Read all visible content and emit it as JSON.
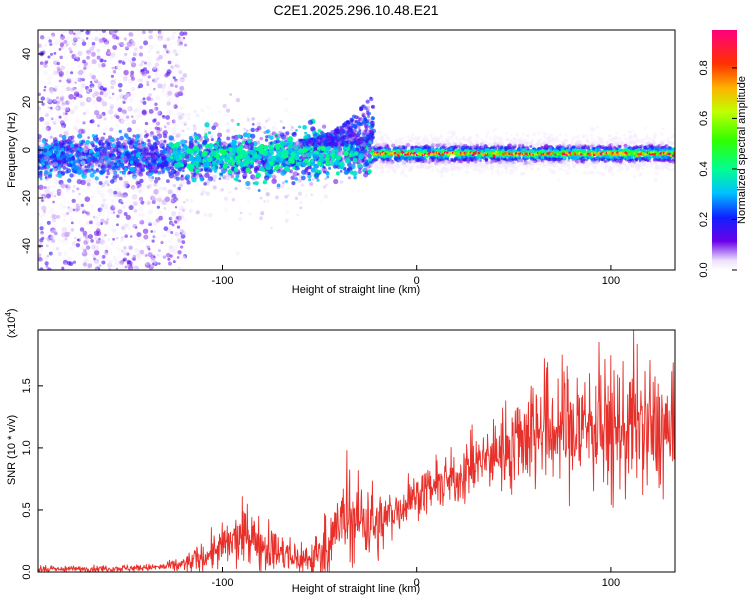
{
  "title": "C2E1.2025.296.10.48.E21",
  "chart_data": [
    {
      "type": "heatmap",
      "name": "spectrogram",
      "title": "C2E1.2025.296.10.48.E21",
      "xlabel": "Height of straight line (km)",
      "ylabel": "Frequency (Hz)",
      "xlim": [
        -195,
        133
      ],
      "ylim": [
        -50,
        50
      ],
      "x_ticks": [
        -100,
        0,
        100
      ],
      "y_ticks": [
        -40,
        -20,
        0,
        20,
        40
      ],
      "colorbar": {
        "label": "Normalized spectral amplitude",
        "range": [
          0,
          0.95
        ],
        "ticks": [
          0.0,
          0.2,
          0.4,
          0.6,
          0.8
        ],
        "tick_labels": [
          "0.0",
          "0.2",
          "0.4",
          "0.6",
          "0.8"
        ]
      },
      "features": [
        {
          "segment": "noise",
          "x_range": [
            -195,
            -125
          ],
          "freq_range": [
            -50,
            50
          ],
          "amplitude": 0.1
        },
        {
          "segment": "transition",
          "x_range": [
            -125,
            -22
          ],
          "freq_center": -3,
          "freq_width": 12,
          "amplitude": 0.35
        },
        {
          "segment": "chirp",
          "x_range": [
            -60,
            -22
          ],
          "freq_end": 24,
          "amplitude": 0.2
        },
        {
          "segment": "stable",
          "x_range": [
            -22,
            133
          ],
          "freq_center": -1.5,
          "freq_width": 6,
          "amplitude": 0.9
        }
      ]
    },
    {
      "type": "line",
      "name": "snr",
      "xlabel": "Height of straight line (km)",
      "ylabel": "SNR (10 * v/v)",
      "multiplier_label": "(x10",
      "multiplier_exp": "4",
      "xlim": [
        -195,
        133
      ],
      "ylim": [
        0,
        1.95
      ],
      "x_ticks": [
        -100,
        0,
        100
      ],
      "y_ticks": [
        0.0,
        0.5,
        1.0,
        1.5
      ],
      "y_tick_labels": [
        "0.0",
        "0.5",
        "1.0",
        "1.5"
      ],
      "color": "#e8302a",
      "envelope": {
        "x": [
          -195,
          -150,
          -130,
          -120,
          -110,
          -100,
          -90,
          -85,
          -75,
          -65,
          -55,
          -45,
          -40,
          -35,
          -30,
          -25,
          -20,
          -15,
          -10,
          0,
          20,
          40,
          60,
          80,
          90,
          100,
          110,
          120,
          133
        ],
        "y": [
          0.02,
          0.03,
          0.04,
          0.06,
          0.12,
          0.2,
          0.27,
          0.28,
          0.18,
          0.12,
          0.1,
          0.2,
          0.38,
          0.4,
          0.42,
          0.45,
          0.35,
          0.45,
          0.5,
          0.62,
          0.75,
          0.95,
          1.15,
          1.15,
          1.2,
          1.1,
          1.2,
          1.15,
          1.1
        ]
      },
      "spread": {
        "x": [
          -195,
          -130,
          -110,
          -90,
          -70,
          -55,
          -40,
          -25,
          -15,
          0,
          40,
          60,
          90,
          133
        ],
        "y": [
          0.012,
          0.015,
          0.06,
          0.12,
          0.08,
          0.08,
          0.16,
          0.18,
          0.1,
          0.08,
          0.14,
          0.25,
          0.28,
          0.25
        ]
      }
    }
  ]
}
